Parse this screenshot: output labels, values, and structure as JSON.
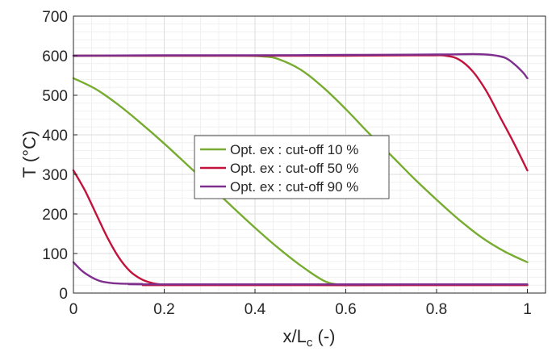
{
  "chart_data": {
    "type": "line",
    "xlabel": "x/L",
    "xlabel_sub": "c",
    "xlabel_unit": " (-)",
    "ylabel": "T (°C)",
    "xlim": [
      0,
      1.04
    ],
    "ylim": [
      0,
      700
    ],
    "xticks": [
      0,
      0.2,
      0.4,
      0.6,
      0.8,
      1
    ],
    "xtick_labels": [
      "0",
      "0.2",
      "0.4",
      "0.6",
      "0.8",
      "1"
    ],
    "yticks": [
      0,
      100,
      200,
      300,
      400,
      500,
      600,
      700
    ],
    "ytick_labels": [
      "0",
      "100",
      "200",
      "300",
      "400",
      "500",
      "600",
      "700"
    ],
    "grid": true,
    "minor_grid": true,
    "legend_position": "center",
    "series": [
      {
        "name": "Opt. ex : cut-off 10 %",
        "color": "#77ac30",
        "curves": [
          {
            "x": [
              0,
              0.05,
              0.1,
              0.15,
              0.2,
              0.25,
              0.3,
              0.35,
              0.4,
              0.45,
              0.5,
              0.55,
              0.58,
              0.6,
              1.0
            ],
            "y": [
              543,
              515,
              475,
              428,
              378,
              325,
              272,
              218,
              165,
              115,
              70,
              32,
              22,
              21,
              21
            ]
          },
          {
            "x": [
              0,
              0.1,
              0.2,
              0.3,
              0.38,
              0.42,
              0.45,
              0.5,
              0.55,
              0.6,
              0.65,
              0.7,
              0.75,
              0.8,
              0.85,
              0.9,
              0.95,
              1.0
            ],
            "y": [
              600,
              600,
              600,
              600,
              600,
              598,
              592,
              565,
              520,
              465,
              405,
              348,
              290,
              236,
              185,
              140,
              105,
              78
            ]
          }
        ]
      },
      {
        "name": "Opt. ex : cut-off 50 %",
        "color": "#c1133b",
        "curves": [
          {
            "x": [
              0,
              0.025,
              0.05,
              0.075,
              0.1,
              0.125,
              0.15,
              0.175,
              0.2,
              0.22,
              1.0
            ],
            "y": [
              310,
              260,
              200,
              140,
              90,
              55,
              35,
              25,
              21,
              20,
              20
            ]
          },
          {
            "x": [
              0,
              0.2,
              0.4,
              0.6,
              0.78,
              0.82,
              0.85,
              0.88,
              0.91,
              0.94,
              0.97,
              1.0
            ],
            "y": [
              600,
              600,
              600,
              600,
              601,
              600,
              590,
              560,
              510,
              445,
              380,
              310
            ]
          }
        ]
      },
      {
        "name": "Opt. ex : cut-off 90 %",
        "color": "#7e2f8e",
        "curves": [
          {
            "x": [
              0,
              0.02,
              0.04,
              0.06,
              0.08,
              0.1,
              0.15,
              0.2,
              1.0
            ],
            "y": [
              78,
              55,
              40,
              30,
              26,
              24,
              23,
              22,
              22
            ]
          },
          {
            "x": [
              0,
              0.2,
              0.4,
              0.6,
              0.8,
              0.88,
              0.92,
              0.95,
              0.97,
              0.99,
              1.0
            ],
            "y": [
              600,
              601,
              601,
              602,
              603,
              604,
              602,
              595,
              580,
              558,
              543
            ]
          }
        ]
      }
    ]
  }
}
